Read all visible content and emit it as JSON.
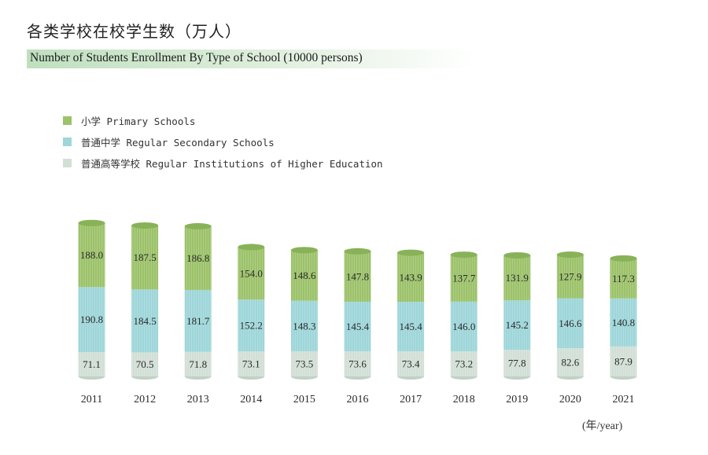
{
  "header": {
    "title_cn": "各类学校在校学生数（万人）",
    "title_en": "Number of Students Enrollment By Type of School (10000 persons)"
  },
  "unit_label": "(年/year)",
  "colors": {
    "primary": "#9cc26a",
    "secondary": "#9ed6d9",
    "higher": "#d2dfd6"
  },
  "chart_data": {
    "type": "bar",
    "stacked": true,
    "categories": [
      "2011",
      "2012",
      "2013",
      "2014",
      "2015",
      "2016",
      "2017",
      "2018",
      "2019",
      "2020",
      "2021"
    ],
    "series": [
      {
        "name": "普通高等学校 Regular Institutions of Higher Education",
        "key": "higher",
        "values": [
          71.1,
          70.5,
          71.8,
          73.1,
          73.5,
          73.6,
          73.4,
          73.2,
          77.8,
          82.6,
          87.9
        ]
      },
      {
        "name": "普通中学 Regular Secondary Schools",
        "key": "secondary",
        "values": [
          190.8,
          184.5,
          181.7,
          152.2,
          148.3,
          145.4,
          145.4,
          146.0,
          145.2,
          146.6,
          140.8
        ]
      },
      {
        "name": "小学 Primary Schools",
        "key": "primary",
        "values": [
          188.0,
          187.5,
          186.8,
          154.0,
          148.6,
          147.8,
          143.9,
          137.7,
          131.9,
          127.9,
          117.3
        ]
      }
    ],
    "legend": [
      {
        "label": "小学 Primary Schools",
        "key": "primary"
      },
      {
        "label": "普通中学 Regular Secondary Schools",
        "key": "secondary"
      },
      {
        "label": "普通高等学校 Regular Institutions of Higher Education",
        "key": "higher"
      }
    ]
  }
}
